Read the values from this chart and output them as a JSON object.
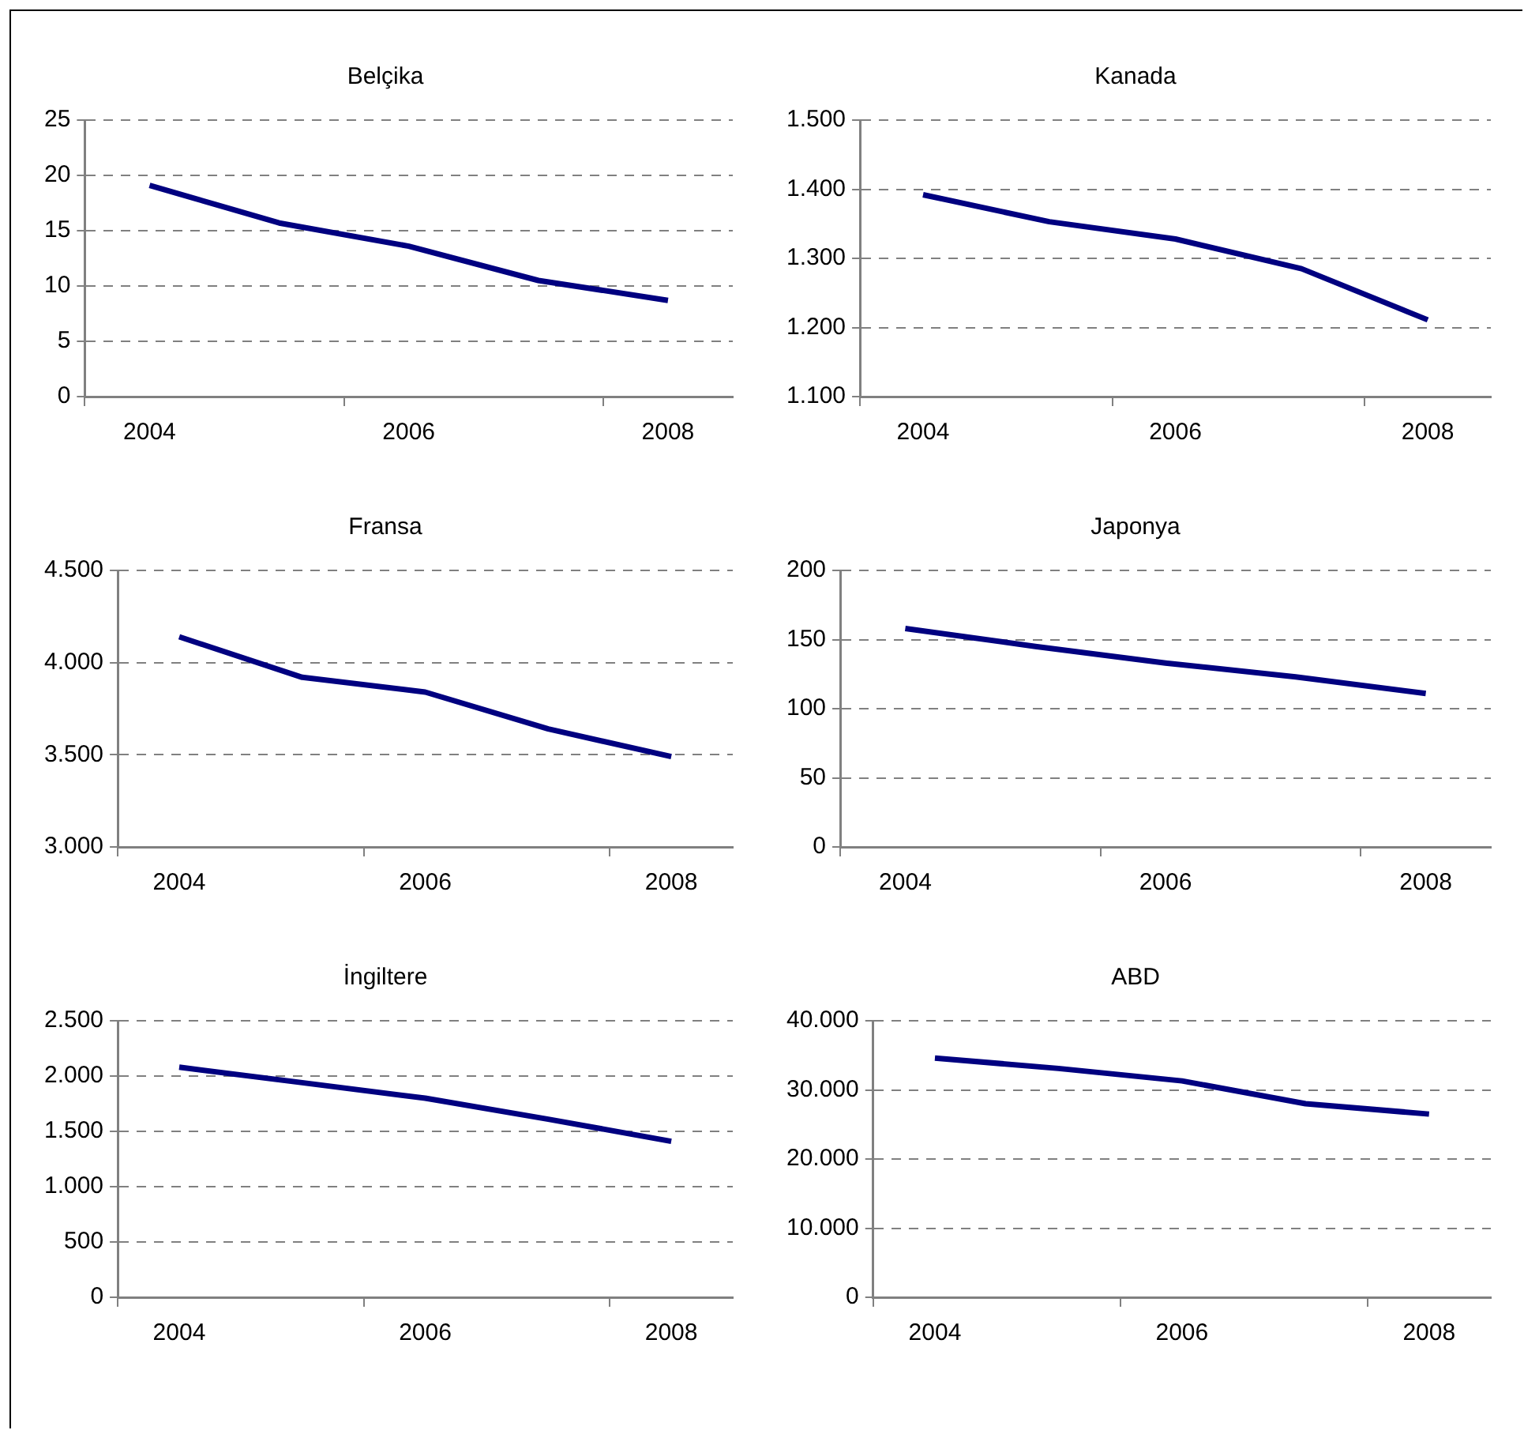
{
  "chart_data": [
    {
      "type": "line",
      "title": "Belçika",
      "categories": [
        "2004",
        null,
        "2006",
        null,
        "2008"
      ],
      "grid": "y",
      "marker": "none",
      "line_style": "solid",
      "ylim": [
        0,
        25
      ],
      "yticks": [
        0,
        5,
        10,
        15,
        20,
        25
      ],
      "series": [
        {
          "color": "#000080",
          "values": [
            19.1,
            15.7,
            13.6,
            10.5,
            8.7
          ]
        }
      ]
    },
    {
      "type": "line",
      "title": "Kanada",
      "categories": [
        "2004",
        null,
        "2006",
        null,
        "2008"
      ],
      "grid": "y",
      "marker": "none",
      "line_style": "solid",
      "ylim": [
        1100,
        1500
      ],
      "yticks": [
        {
          "value": 1100,
          "label": "1.100"
        },
        {
          "value": 1200,
          "label": "1.200"
        },
        {
          "value": 1300,
          "label": "1.300"
        },
        {
          "value": 1400,
          "label": "1.400"
        },
        {
          "value": 1500,
          "label": "1.500"
        }
      ],
      "series": [
        {
          "color": "#000080",
          "values": [
            1392,
            1353,
            1328,
            1285,
            1211
          ]
        }
      ]
    },
    {
      "type": "line",
      "title": "Fransa",
      "categories": [
        "2004",
        null,
        "2006",
        null,
        "2008"
      ],
      "grid": "y",
      "marker": "none",
      "line_style": "solid",
      "ylim": [
        3000,
        4500
      ],
      "yticks": [
        {
          "value": 3000,
          "label": "3.000"
        },
        {
          "value": 3500,
          "label": "3.500"
        },
        {
          "value": 4000,
          "label": "4.000"
        },
        {
          "value": 4500,
          "label": "4.500"
        }
      ],
      "series": [
        {
          "color": "#000080",
          "values": [
            4140,
            3920,
            3840,
            3640,
            3490
          ]
        }
      ]
    },
    {
      "type": "line",
      "title": "Japonya",
      "categories": [
        "2004",
        null,
        "2006",
        null,
        "2008"
      ],
      "grid": "y",
      "marker": "none",
      "line_style": "solid",
      "ylim": [
        0,
        200
      ],
      "yticks": [
        0,
        50,
        100,
        150,
        200
      ],
      "series": [
        {
          "color": "#000080",
          "values": [
            158,
            145,
            133,
            123,
            111
          ]
        }
      ]
    },
    {
      "type": "line",
      "title": "İngiltere",
      "categories": [
        "2004",
        null,
        "2006",
        null,
        "2008"
      ],
      "grid": "y",
      "marker": "none",
      "line_style": "solid",
      "ylim": [
        0,
        2500
      ],
      "yticks": [
        0,
        500,
        {
          "value": 1000,
          "label": "1.000"
        },
        {
          "value": 1500,
          "label": "1.500"
        },
        {
          "value": 2000,
          "label": "2.000"
        },
        {
          "value": 2500,
          "label": "2.500"
        }
      ],
      "series": [
        {
          "color": "#000080",
          "values": [
            2080,
            1940,
            1800,
            1610,
            1410
          ]
        }
      ]
    },
    {
      "type": "line",
      "title": "ABD",
      "categories": [
        "2004",
        null,
        "2006",
        null,
        "2008"
      ],
      "grid": "y",
      "marker": "none",
      "line_style": "solid",
      "ylim": [
        0,
        40000
      ],
      "yticks": [
        0,
        {
          "value": 10000,
          "label": "10.000"
        },
        {
          "value": 20000,
          "label": "20.000"
        },
        {
          "value": 30000,
          "label": "30.000"
        },
        {
          "value": 40000,
          "label": "40.000"
        }
      ],
      "series": [
        {
          "color": "#000080",
          "values": [
            34600,
            33100,
            31300,
            28000,
            26500
          ]
        }
      ]
    }
  ]
}
